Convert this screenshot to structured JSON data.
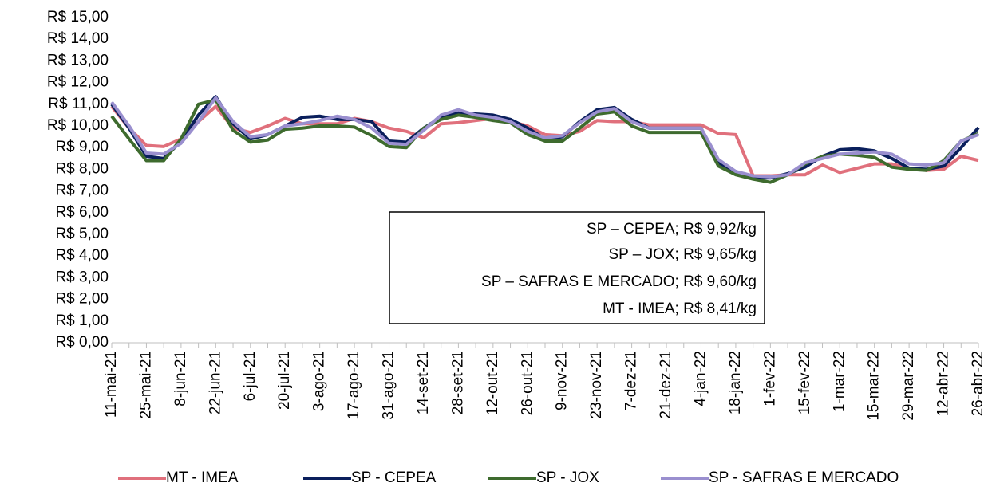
{
  "chart_data": {
    "type": "line",
    "categories": [
      "11-mai-21",
      null,
      "25-mai-21",
      null,
      "8-jun-21",
      null,
      "22-jun-21",
      null,
      "6-jul-21",
      null,
      "20-jul-21",
      null,
      "3-ago-21",
      null,
      "17-ago-21",
      null,
      "31-ago-21",
      null,
      "14-set-21",
      null,
      "28-set-21",
      null,
      "12-out-21",
      null,
      "26-out-21",
      null,
      "9-nov-21",
      null,
      "23-nov-21",
      null,
      "7-dez-21",
      null,
      "21-dez-21",
      null,
      "4-jan-22",
      null,
      "18-jan-22",
      null,
      "1-fev-22",
      null,
      "15-fev-22",
      null,
      "1-mar-22",
      null,
      "15-mar-22",
      null,
      "29-mar-22",
      null,
      "12-abr-22",
      null,
      "26-abr-22"
    ],
    "series": [
      {
        "name": "MT - IMEA",
        "color": "#e0707c",
        "values": [
          10.9,
          9.9,
          9.1,
          9.05,
          9.4,
          10.2,
          10.9,
          9.9,
          9.7,
          10.0,
          10.35,
          10.1,
          10.1,
          10.1,
          10.35,
          10.2,
          9.9,
          9.75,
          9.45,
          10.1,
          10.15,
          10.25,
          10.35,
          10.2,
          10.0,
          9.6,
          9.55,
          9.75,
          10.25,
          10.2,
          10.2,
          10.05,
          10.05,
          10.05,
          10.05,
          9.65,
          9.6,
          7.7,
          7.7,
          7.75,
          7.75,
          8.2,
          7.85,
          8.05,
          8.25,
          8.25,
          8.05,
          7.95,
          8.0,
          8.6,
          8.41
        ]
      },
      {
        "name": "SP - CEPEA",
        "color": "#0a1f5c",
        "values": [
          11.0,
          9.9,
          8.6,
          8.5,
          9.3,
          10.5,
          11.35,
          10.1,
          9.4,
          9.6,
          10.0,
          10.4,
          10.45,
          10.3,
          10.3,
          10.2,
          9.3,
          9.25,
          9.9,
          10.4,
          10.6,
          10.55,
          10.5,
          10.3,
          9.9,
          9.4,
          9.5,
          10.2,
          10.75,
          10.85,
          10.3,
          9.9,
          9.9,
          9.9,
          9.9,
          8.3,
          7.9,
          7.6,
          7.6,
          7.8,
          8.1,
          8.6,
          8.9,
          8.95,
          8.85,
          8.5,
          8.05,
          8.0,
          8.15,
          9.0,
          9.92
        ]
      },
      {
        "name": "SP - JOX",
        "color": "#3e6b2e",
        "values": [
          10.45,
          9.4,
          8.4,
          8.4,
          9.4,
          11.0,
          11.2,
          9.8,
          9.25,
          9.35,
          9.85,
          9.9,
          10.0,
          10.0,
          9.95,
          9.55,
          9.05,
          9.0,
          9.9,
          10.3,
          10.5,
          10.4,
          10.25,
          10.15,
          9.6,
          9.3,
          9.3,
          9.9,
          10.55,
          10.65,
          10.0,
          9.7,
          9.7,
          9.7,
          9.7,
          8.15,
          7.75,
          7.55,
          7.4,
          7.75,
          8.25,
          8.6,
          8.7,
          8.65,
          8.55,
          8.1,
          8.0,
          7.95,
          8.4,
          9.3,
          9.65
        ]
      },
      {
        "name": "SP - SAFRAS E MERCADO",
        "color": "#9a8fcf",
        "values": [
          11.1,
          10.0,
          8.75,
          8.7,
          9.2,
          10.2,
          11.3,
          10.2,
          9.5,
          9.6,
          10.0,
          10.1,
          10.25,
          10.45,
          10.3,
          9.9,
          9.2,
          9.15,
          9.8,
          10.5,
          10.75,
          10.5,
          10.4,
          10.2,
          9.75,
          9.45,
          9.55,
          10.15,
          10.65,
          10.8,
          10.2,
          9.9,
          9.9,
          9.9,
          9.9,
          8.45,
          7.9,
          7.7,
          7.65,
          7.75,
          8.3,
          8.5,
          8.7,
          8.75,
          8.8,
          8.7,
          8.25,
          8.2,
          8.3,
          9.3,
          9.6
        ]
      }
    ],
    "ylim": [
      0,
      15
    ],
    "yticks": [
      {
        "value": 0,
        "label": "R$ 0,00"
      },
      {
        "value": 1,
        "label": "R$ 1,00"
      },
      {
        "value": 2,
        "label": "R$ 2,00"
      },
      {
        "value": 3,
        "label": "R$ 3,00"
      },
      {
        "value": 4,
        "label": "R$ 4,00"
      },
      {
        "value": 5,
        "label": "R$ 5,00"
      },
      {
        "value": 6,
        "label": "R$ 6,00"
      },
      {
        "value": 7,
        "label": "R$ 7,00"
      },
      {
        "value": 8,
        "label": "R$ 8,00"
      },
      {
        "value": 9,
        "label": "R$ 9,00"
      },
      {
        "value": 10,
        "label": "R$ 10,00"
      },
      {
        "value": 11,
        "label": "R$ 11,00"
      },
      {
        "value": 12,
        "label": "R$ 12,00"
      },
      {
        "value": 13,
        "label": "R$ 13,00"
      },
      {
        "value": 14,
        "label": "R$ 14,00"
      },
      {
        "value": 15,
        "label": "R$ 15,00"
      }
    ],
    "grid": false,
    "legend": "bottom",
    "annotations": [
      "SP – CEPEA; R$ 9,92/kg",
      "SP – JOX; R$ 9,65/kg",
      "SP – SAFRAS E MERCADO; R$ 9,60/kg",
      "MT - IMEA; R$ 8,41/kg"
    ]
  }
}
